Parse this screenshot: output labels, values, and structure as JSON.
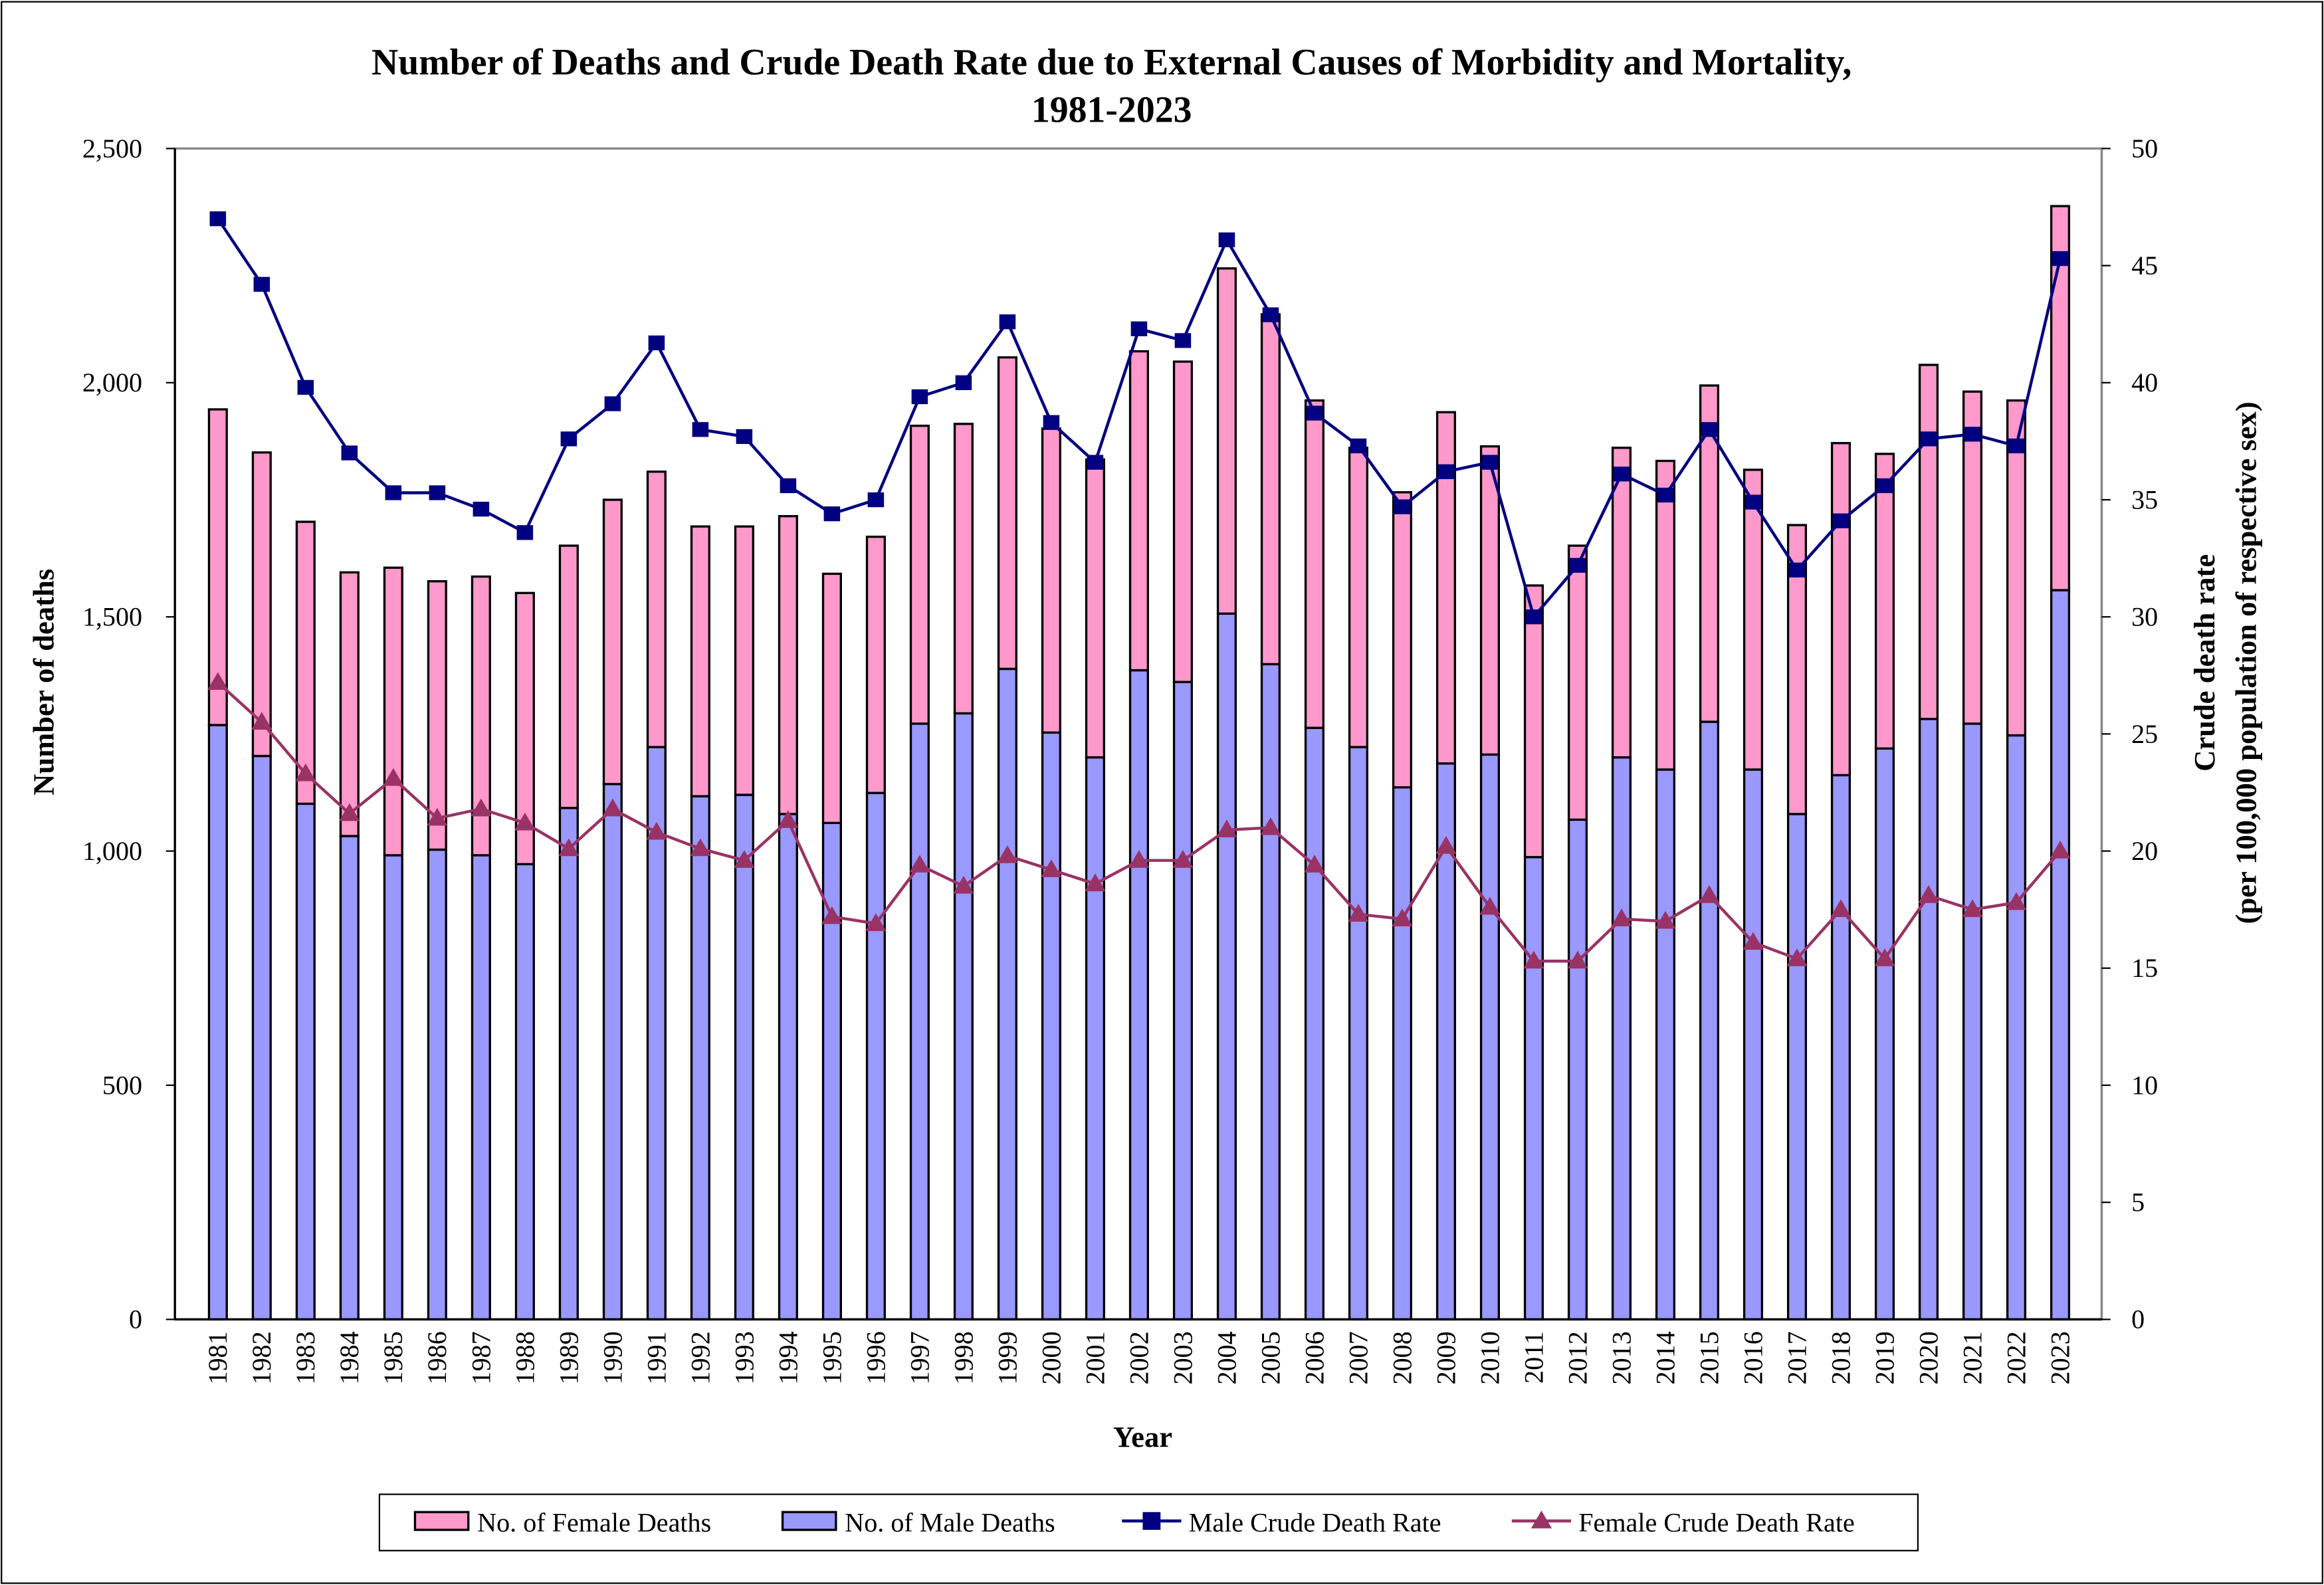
{
  "chart_data": {
    "type": "bar",
    "stacked": true,
    "title": "Number of Deaths and Crude Death Rate due to External Causes of Morbidity and Mortality,",
    "subtitle": "1981-2023",
    "xlabel": "Year",
    "ylabel": "Number of deaths",
    "y2label": "Crude death rate",
    "y2label_sub": "(per 100,000 population of respective sex)",
    "ylim": [
      0,
      2500
    ],
    "y2lim": [
      0,
      50
    ],
    "yticks": [
      "0",
      "500",
      "1,000",
      "1,500",
      "2,000",
      "2,500"
    ],
    "y2ticks": [
      "0",
      "5",
      "10",
      "15",
      "20",
      "25",
      "30",
      "35",
      "40",
      "45",
      "50"
    ],
    "grid": false,
    "legend_position": "bottom",
    "categories": [
      "1981",
      "1982",
      "1983",
      "1984",
      "1985",
      "1986",
      "1987",
      "1988",
      "1989",
      "1990",
      "1991",
      "1992",
      "1993",
      "1994",
      "1995",
      "1996",
      "1997",
      "1998",
      "1999",
      "2000",
      "2001",
      "2002",
      "2003",
      "2004",
      "2005",
      "2006",
      "2007",
      "2008",
      "2009",
      "2010",
      "2011",
      "2012",
      "2013",
      "2014",
      "2015",
      "2016",
      "2017",
      "2018",
      "2019",
      "2020",
      "2021",
      "2022",
      "2023"
    ],
    "series": [
      {
        "name": "No. of Female Deaths",
        "type": "bar",
        "axis": "left",
        "color": "#FF99CC",
        "values": [
          674,
          648,
          602,
          563,
          614,
          573,
          595,
          579,
          560,
          607,
          588,
          576,
          573,
          636,
          532,
          547,
          636,
          618,
          665,
          649,
          636,
          681,
          684,
          737,
          747,
          699,
          639,
          630,
          750,
          658,
          580,
          585,
          661,
          659,
          718,
          640,
          617,
          709,
          629,
          756,
          709,
          715,
          820
        ]
      },
      {
        "name": "No. of Male Deaths",
        "type": "bar",
        "axis": "left",
        "color": "#9999FF",
        "values": [
          1269,
          1203,
          1101,
          1032,
          991,
          1003,
          991,
          972,
          1092,
          1143,
          1222,
          1117,
          1120,
          1079,
          1060,
          1124,
          1272,
          1294,
          1389,
          1253,
          1200,
          1386,
          1361,
          1507,
          1399,
          1263,
          1222,
          1136,
          1187,
          1206,
          987,
          1067,
          1200,
          1174,
          1276,
          1174,
          1079,
          1162,
          1219,
          1282,
          1272,
          1247,
          1557
        ]
      },
      {
        "name": "Male Crude Death Rate",
        "type": "line",
        "axis": "right",
        "marker": "square",
        "color": "#000080",
        "values": [
          47.0,
          44.2,
          39.8,
          37.0,
          35.3,
          35.3,
          34.6,
          33.6,
          37.6,
          39.1,
          41.7,
          38.0,
          37.7,
          35.6,
          34.4,
          35.0,
          39.4,
          40.0,
          42.6,
          38.3,
          36.6,
          42.3,
          41.8,
          46.1,
          42.9,
          38.7,
          37.3,
          34.7,
          36.2,
          36.6,
          30.0,
          32.2,
          36.1,
          35.2,
          38.0,
          34.9,
          32.0,
          34.1,
          35.6,
          37.6,
          37.8,
          37.3,
          45.3
        ]
      },
      {
        "name": "Female Crude Death Rate",
        "type": "line",
        "axis": "right",
        "marker": "triangle",
        "color": "#993366",
        "values": [
          27.2,
          25.5,
          23.3,
          21.6,
          23.1,
          21.4,
          21.8,
          21.2,
          20.1,
          21.8,
          20.8,
          20.1,
          19.6,
          21.3,
          17.2,
          16.9,
          19.4,
          18.5,
          19.8,
          19.2,
          18.6,
          19.6,
          19.6,
          20.9,
          21.0,
          19.4,
          17.3,
          17.1,
          20.2,
          17.6,
          15.3,
          15.3,
          17.1,
          17.0,
          18.1,
          16.1,
          15.4,
          17.5,
          15.4,
          18.1,
          17.5,
          17.8,
          20.0
        ]
      }
    ]
  }
}
